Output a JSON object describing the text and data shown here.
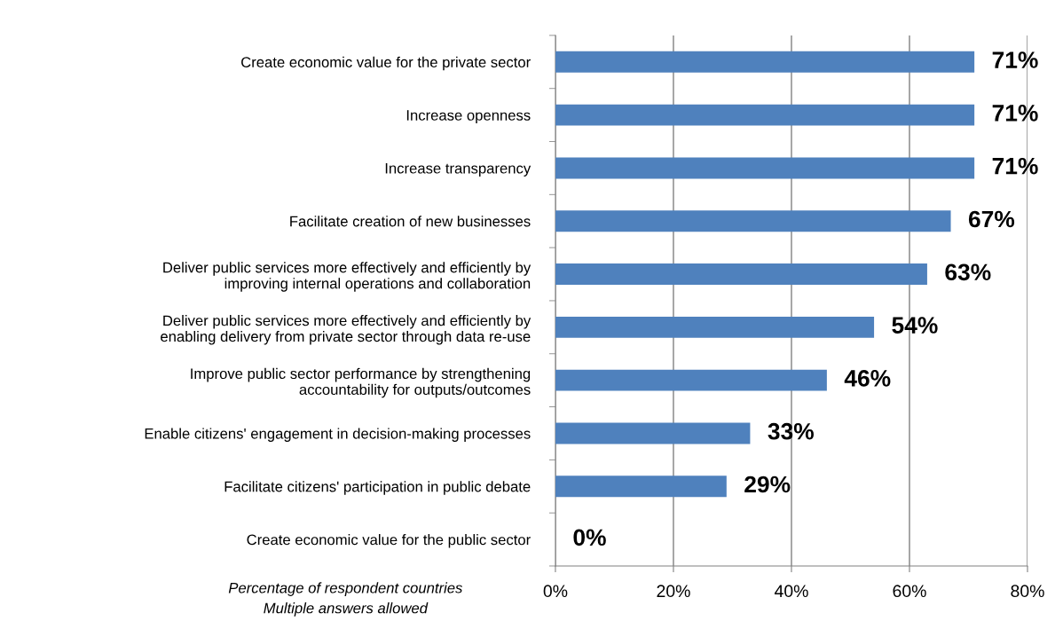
{
  "chart_data": {
    "type": "bar",
    "orientation": "horizontal",
    "categories": [
      "Create economic value for the private sector",
      "Increase openness",
      "Increase transparency",
      "Facilitate creation of new businesses",
      "Deliver public services more effectively and efficiently by\nimproving internal operations and collaboration",
      "Deliver public services more effectively and efficiently by\nenabling delivery from private sector through data re-use",
      "Improve public sector performance by strengthening\naccountability for outputs/outcomes",
      "Enable citizens' engagement in decision-making processes",
      "Facilitate citizens' participation in public debate",
      "Create economic value for the public sector"
    ],
    "values": [
      71,
      71,
      71,
      67,
      63,
      54,
      46,
      33,
      29,
      0
    ],
    "value_labels": [
      "71%",
      "71%",
      "71%",
      "67%",
      "63%",
      "54%",
      "46%",
      "33%",
      "29%",
      "0%"
    ],
    "color": "#4f81bd",
    "xlim": [
      0,
      80
    ],
    "xticks": [
      {
        "value": 0,
        "label": "0%"
      },
      {
        "value": 20,
        "label": "20%"
      },
      {
        "value": 40,
        "label": "40%"
      },
      {
        "value": 60,
        "label": "60%"
      },
      {
        "value": 80,
        "label": "80%"
      }
    ],
    "grid": "x",
    "annotations": [
      "Percentage of respondent countries\nMultiple answers allowed"
    ]
  }
}
